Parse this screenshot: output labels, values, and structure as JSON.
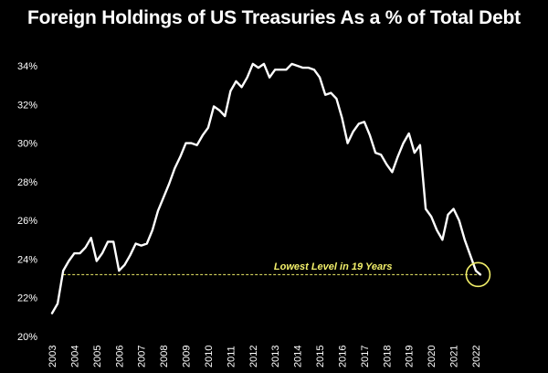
{
  "chart_data": {
    "type": "line",
    "title": "Foreign Holdings of US Treasuries As a % of Total Debt",
    "xlabel": "",
    "ylabel": "",
    "x_ticks": [
      "2003",
      "2004",
      "2005",
      "2006",
      "2007",
      "2008",
      "2009",
      "2010",
      "2011",
      "2012",
      "2013",
      "2014",
      "2015",
      "2016",
      "2017",
      "2018",
      "2019",
      "2020",
      "2021",
      "2022"
    ],
    "y_ticks": [
      "20%",
      "22%",
      "24%",
      "26%",
      "28%",
      "30%",
      "32%",
      "34%"
    ],
    "ylim": [
      20,
      34.5
    ],
    "xlim": [
      2003,
      2022.2
    ],
    "grid": false,
    "line_color": "#ffffff",
    "annotation_color": "#f2ef6a",
    "series": [
      {
        "values": [
          [
            2003.0,
            21.2
          ],
          [
            2003.25,
            21.7
          ],
          [
            2003.5,
            23.4
          ],
          [
            2003.75,
            23.9
          ],
          [
            2004.0,
            24.3
          ],
          [
            2004.25,
            24.3
          ],
          [
            2004.5,
            24.6
          ],
          [
            2004.75,
            25.1
          ],
          [
            2005.0,
            23.9
          ],
          [
            2005.25,
            24.3
          ],
          [
            2005.5,
            24.9
          ],
          [
            2005.75,
            24.9
          ],
          [
            2006.0,
            23.4
          ],
          [
            2006.25,
            23.7
          ],
          [
            2006.5,
            24.2
          ],
          [
            2006.75,
            24.8
          ],
          [
            2007.0,
            24.7
          ],
          [
            2007.25,
            24.8
          ],
          [
            2007.5,
            25.5
          ],
          [
            2007.75,
            26.5
          ],
          [
            2008.0,
            27.2
          ],
          [
            2008.25,
            27.9
          ],
          [
            2008.5,
            28.7
          ],
          [
            2008.75,
            29.3
          ],
          [
            2009.0,
            30.0
          ],
          [
            2009.25,
            30.0
          ],
          [
            2009.5,
            29.9
          ],
          [
            2009.75,
            30.4
          ],
          [
            2010.0,
            30.8
          ],
          [
            2010.25,
            31.9
          ],
          [
            2010.5,
            31.7
          ],
          [
            2010.75,
            31.4
          ],
          [
            2011.0,
            32.7
          ],
          [
            2011.25,
            33.2
          ],
          [
            2011.5,
            32.9
          ],
          [
            2011.75,
            33.4
          ],
          [
            2012.0,
            34.1
          ],
          [
            2012.25,
            33.9
          ],
          [
            2012.5,
            34.1
          ],
          [
            2012.75,
            33.4
          ],
          [
            2013.0,
            33.8
          ],
          [
            2013.25,
            33.8
          ],
          [
            2013.5,
            33.8
          ],
          [
            2013.75,
            34.1
          ],
          [
            2014.0,
            34.0
          ],
          [
            2014.25,
            33.9
          ],
          [
            2014.5,
            33.9
          ],
          [
            2014.75,
            33.8
          ],
          [
            2015.0,
            33.4
          ],
          [
            2015.25,
            32.5
          ],
          [
            2015.5,
            32.6
          ],
          [
            2015.75,
            32.3
          ],
          [
            2016.0,
            31.3
          ],
          [
            2016.25,
            30.0
          ],
          [
            2016.5,
            30.6
          ],
          [
            2016.75,
            31.0
          ],
          [
            2017.0,
            31.1
          ],
          [
            2017.25,
            30.4
          ],
          [
            2017.5,
            29.5
          ],
          [
            2017.75,
            29.4
          ],
          [
            2018.0,
            28.9
          ],
          [
            2018.25,
            28.5
          ],
          [
            2018.5,
            29.3
          ],
          [
            2018.75,
            30.0
          ],
          [
            2019.0,
            30.5
          ],
          [
            2019.25,
            29.5
          ],
          [
            2019.5,
            29.9
          ],
          [
            2019.75,
            26.6
          ],
          [
            2020.0,
            26.2
          ],
          [
            2020.25,
            25.5
          ],
          [
            2020.5,
            25.0
          ],
          [
            2020.75,
            26.3
          ],
          [
            2021.0,
            26.6
          ],
          [
            2021.25,
            26.0
          ],
          [
            2021.5,
            25.0
          ],
          [
            2021.75,
            24.2
          ],
          [
            2022.0,
            23.4
          ],
          [
            2022.2,
            23.2
          ]
        ]
      }
    ],
    "reference_line": {
      "y": 23.2,
      "x_start": 2003.5,
      "x_end": 2022.2,
      "style": "dashed"
    },
    "annotation": {
      "text": "Lowest Level in 19 Years",
      "x": 2015.6,
      "y": 23.6
    },
    "highlight_circle": {
      "x": 2022.1,
      "y": 23.2
    }
  }
}
